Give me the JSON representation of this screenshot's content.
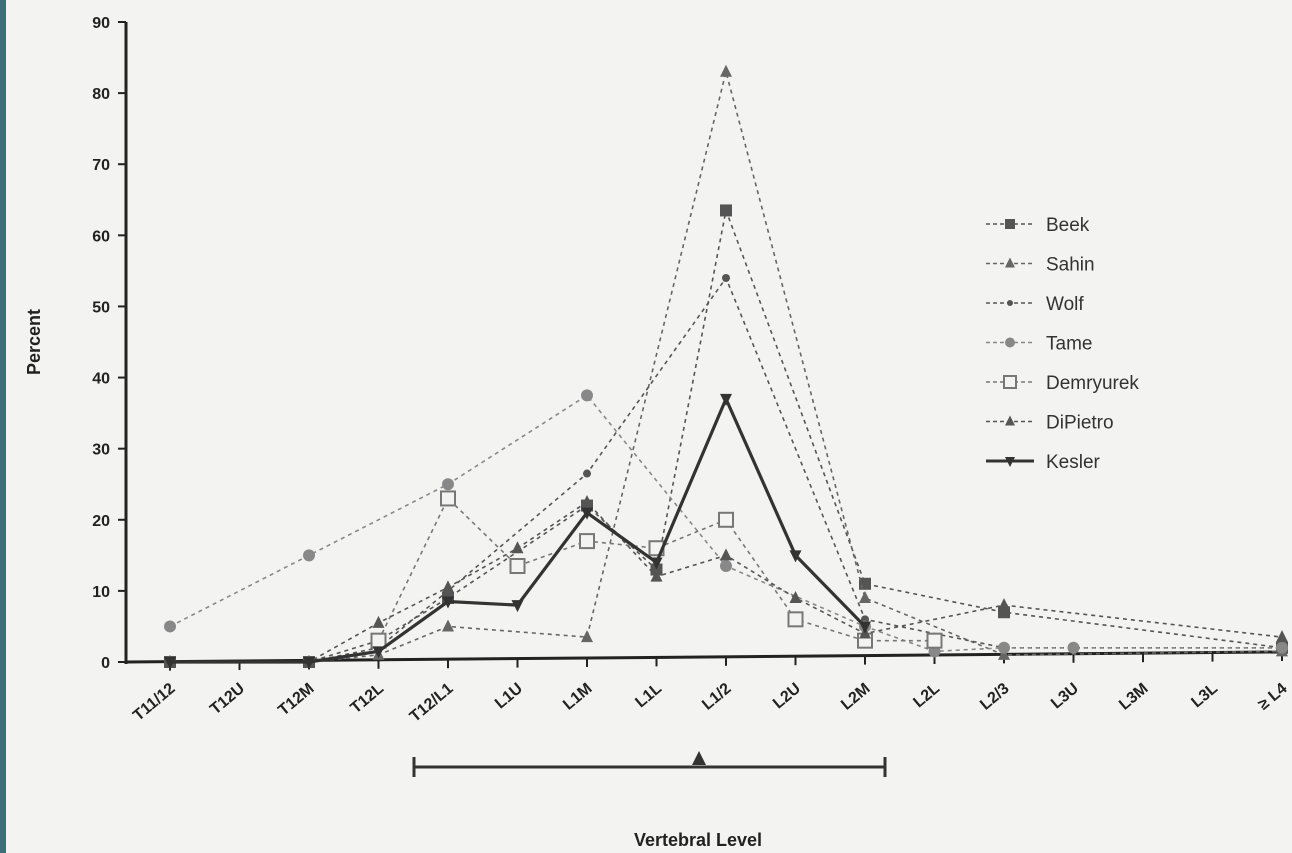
{
  "chart_data": {
    "type": "line",
    "xlabel": "Vertebral Level",
    "ylabel": "Percent",
    "ylim": [
      0,
      90
    ],
    "yticks": [
      "0",
      "10",
      "20",
      "30",
      "40",
      "50",
      "60",
      "70",
      "80",
      "90"
    ],
    "categories": [
      "T11/12",
      "T12U",
      "T12M",
      "T12L",
      "T12/L1",
      "L1U",
      "L1M",
      "L1L",
      "L1/2",
      "L2U",
      "L2M",
      "L2L",
      "L2/3",
      "L3U",
      "L3M",
      "L3L",
      "≥ L4"
    ],
    "legend_position": "right",
    "series": [
      {
        "name": "Beek",
        "marker": "square",
        "style": "dotted",
        "color": "#555555",
        "values": [
          0,
          null,
          0,
          3,
          9,
          null,
          22,
          13,
          63.5,
          null,
          11,
          null,
          7,
          null,
          null,
          null,
          2
        ]
      },
      {
        "name": "Sahin",
        "marker": "triangle",
        "style": "dotted",
        "color": "#666666",
        "values": [
          0,
          null,
          0,
          1,
          5,
          null,
          3.5,
          null,
          83,
          null,
          9,
          null,
          1,
          null,
          null,
          null,
          1.5
        ]
      },
      {
        "name": "Wolf",
        "marker": "dot",
        "style": "dotted",
        "color": "#555555",
        "values": [
          0,
          null,
          0,
          2,
          10,
          null,
          26.5,
          null,
          54,
          null,
          6,
          null,
          2,
          null,
          null,
          null,
          2
        ]
      },
      {
        "name": "Tame",
        "marker": "circle",
        "style": "dotted",
        "color": "#888888",
        "values": [
          5,
          null,
          15,
          null,
          25,
          null,
          37.5,
          null,
          13.5,
          null,
          5,
          1.5,
          2,
          2,
          null,
          null,
          2
        ]
      },
      {
        "name": "Demryurek",
        "marker": "open-square",
        "style": "dotted",
        "color": "#777777",
        "values": [
          null,
          null,
          null,
          3,
          23,
          13.5,
          17,
          16,
          20,
          6,
          3,
          3,
          null,
          null,
          null,
          null,
          null
        ]
      },
      {
        "name": "DiPietro",
        "marker": "triangle",
        "style": "dotted",
        "color": "#555555",
        "values": [
          0,
          null,
          0,
          5.5,
          10.5,
          16,
          22.5,
          12,
          15,
          9,
          4,
          null,
          8,
          null,
          null,
          null,
          3.5
        ]
      },
      {
        "name": "Kesler",
        "marker": "inverted-triangle",
        "style": "solid",
        "color": "#333333",
        "values": [
          0,
          null,
          0,
          1.5,
          8.5,
          8,
          21,
          14,
          37,
          15,
          5,
          null,
          null,
          null,
          null,
          null,
          null
        ]
      }
    ],
    "range_bar": {
      "from": "T12/L1",
      "to": "L2M",
      "marker": "triangle",
      "mid": "L1/2"
    }
  }
}
